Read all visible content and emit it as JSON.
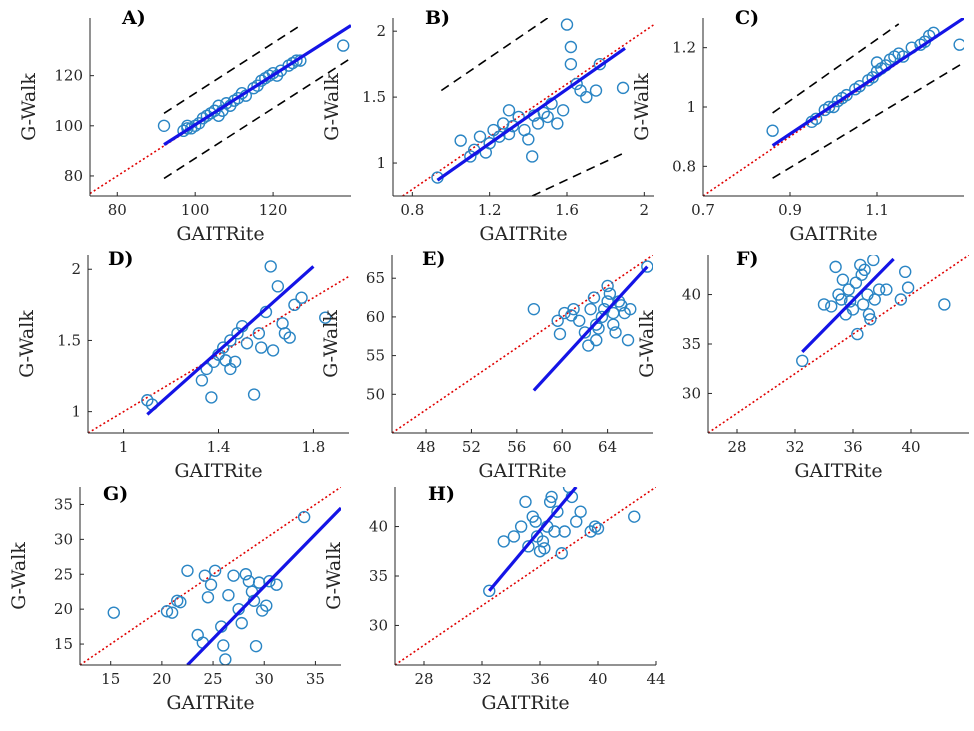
{
  "colors": {
    "marker": "#2a85c4",
    "fit": "#1414e6",
    "identity": "#e00000",
    "band": "#000000"
  },
  "chart_data": [
    {
      "label": "A)",
      "type": "scatter",
      "xlabel": "GAITRite",
      "ylabel": "G-Walk",
      "xlim": [
        73,
        140
      ],
      "ylim": [
        72,
        143
      ],
      "xticks": [
        80,
        100,
        120
      ],
      "xticklabels": [
        "80",
        "100",
        "120"
      ],
      "yticks": [
        80,
        100,
        120
      ],
      "yticklabels": [
        "80",
        "100",
        "120"
      ],
      "identity": true,
      "fit": {
        "x": [
          92,
          140
        ],
        "y": [
          92.5,
          140
        ]
      },
      "bands": [
        {
          "x": [
            92,
            127
          ],
          "y": [
            105,
            140
          ]
        },
        {
          "x": [
            92,
            140
          ],
          "y": [
            79,
            127
          ]
        }
      ],
      "points": [
        [
          92,
          100
        ],
        [
          97,
          98
        ],
        [
          98,
          99
        ],
        [
          98,
          100
        ],
        [
          99,
          99
        ],
        [
          100,
          100
        ],
        [
          101,
          101
        ],
        [
          102,
          103
        ],
        [
          103,
          104
        ],
        [
          104,
          105
        ],
        [
          105,
          106
        ],
        [
          106,
          104
        ],
        [
          106,
          108
        ],
        [
          107,
          106
        ],
        [
          108,
          109
        ],
        [
          109,
          108
        ],
        [
          110,
          110
        ],
        [
          111,
          111
        ],
        [
          112,
          113
        ],
        [
          113,
          112
        ],
        [
          115,
          115
        ],
        [
          116,
          116
        ],
        [
          117,
          118
        ],
        [
          118,
          119
        ],
        [
          119,
          120
        ],
        [
          120,
          121
        ],
        [
          121,
          120
        ],
        [
          122,
          122
        ],
        [
          124,
          124
        ],
        [
          125,
          125
        ],
        [
          126,
          126
        ],
        [
          127,
          126
        ],
        [
          138,
          132
        ]
      ]
    },
    {
      "label": "B)",
      "type": "scatter",
      "xlabel": "GAITRite",
      "ylabel": "G-Walk",
      "xlim": [
        0.7,
        2.05
      ],
      "ylim": [
        0.75,
        2.1
      ],
      "xticks": [
        0.8,
        1.2,
        1.6,
        2.0
      ],
      "xticklabels": [
        "0.8",
        "1.2",
        "1.6",
        "2"
      ],
      "yticks": [
        1.0,
        1.5,
        2.0
      ],
      "yticklabels": [
        "1",
        "1.5",
        "2"
      ],
      "identity": true,
      "fit": {
        "x": [
          0.93,
          1.9
        ],
        "y": [
          0.87,
          1.87
        ]
      },
      "bands": [
        {
          "x": [
            0.95,
            1.5
          ],
          "y": [
            1.55,
            2.1
          ]
        },
        {
          "x": [
            1.42,
            1.9
          ],
          "y": [
            0.75,
            1.08
          ]
        }
      ],
      "points": [
        [
          0.93,
          0.89
        ],
        [
          1.05,
          1.17
        ],
        [
          1.1,
          1.05
        ],
        [
          1.12,
          1.1
        ],
        [
          1.15,
          1.2
        ],
        [
          1.18,
          1.08
        ],
        [
          1.2,
          1.15
        ],
        [
          1.22,
          1.25
        ],
        [
          1.25,
          1.2
        ],
        [
          1.27,
          1.3
        ],
        [
          1.3,
          1.22
        ],
        [
          1.3,
          1.4
        ],
        [
          1.32,
          1.28
        ],
        [
          1.35,
          1.35
        ],
        [
          1.38,
          1.25
        ],
        [
          1.4,
          1.18
        ],
        [
          1.42,
          1.05
        ],
        [
          1.43,
          1.36
        ],
        [
          1.45,
          1.3
        ],
        [
          1.48,
          1.38
        ],
        [
          1.5,
          1.35
        ],
        [
          1.52,
          1.45
        ],
        [
          1.55,
          1.3
        ],
        [
          1.58,
          1.4
        ],
        [
          1.6,
          2.05
        ],
        [
          1.62,
          1.88
        ],
        [
          1.62,
          1.75
        ],
        [
          1.65,
          1.6
        ],
        [
          1.67,
          1.55
        ],
        [
          1.7,
          1.5
        ],
        [
          1.75,
          1.55
        ],
        [
          1.77,
          1.75
        ],
        [
          1.89,
          1.57
        ]
      ]
    },
    {
      "label": "C)",
      "type": "scatter",
      "xlabel": "GAITRite",
      "ylabel": "G-Walk",
      "xlim": [
        0.7,
        1.3
      ],
      "ylim": [
        0.7,
        1.3
      ],
      "xticks": [
        0.7,
        0.9,
        1.1
      ],
      "xticklabels": [
        "0.7",
        "0.9",
        "1.1"
      ],
      "yticks": [
        0.8,
        1.0,
        1.2
      ],
      "yticklabels": [
        "0.8",
        "1",
        "1.2"
      ],
      "identity": true,
      "fit": {
        "x": [
          0.86,
          1.3
        ],
        "y": [
          0.87,
          1.3
        ]
      },
      "bands": [
        {
          "x": [
            0.86,
            1.15
          ],
          "y": [
            0.98,
            1.28
          ]
        },
        {
          "x": [
            0.86,
            1.3
          ],
          "y": [
            0.76,
            1.15
          ]
        }
      ],
      "points": [
        [
          0.86,
          0.92
        ],
        [
          0.95,
          0.95
        ],
        [
          0.96,
          0.96
        ],
        [
          0.98,
          0.99
        ],
        [
          0.99,
          1.0
        ],
        [
          1.0,
          1.0
        ],
        [
          1.01,
          1.02
        ],
        [
          1.02,
          1.03
        ],
        [
          1.03,
          1.04
        ],
        [
          1.05,
          1.06
        ],
        [
          1.06,
          1.07
        ],
        [
          1.08,
          1.09
        ],
        [
          1.09,
          1.1
        ],
        [
          1.1,
          1.12
        ],
        [
          1.1,
          1.15
        ],
        [
          1.11,
          1.13
        ],
        [
          1.12,
          1.14
        ],
        [
          1.13,
          1.16
        ],
        [
          1.14,
          1.17
        ],
        [
          1.15,
          1.18
        ],
        [
          1.16,
          1.17
        ],
        [
          1.18,
          1.2
        ],
        [
          1.2,
          1.21
        ],
        [
          1.21,
          1.22
        ],
        [
          1.22,
          1.24
        ],
        [
          1.23,
          1.25
        ],
        [
          1.29,
          1.21
        ]
      ]
    },
    {
      "label": "D)",
      "type": "scatter",
      "xlabel": "GAITRite",
      "ylabel": "G-Walk",
      "xlim": [
        0.85,
        1.95
      ],
      "ylim": [
        0.85,
        2.1
      ],
      "xticks": [
        1.0,
        1.4,
        1.8
      ],
      "xticklabels": [
        "1",
        "1.4",
        "1.8"
      ],
      "yticks": [
        1.0,
        1.5,
        2.0
      ],
      "yticklabels": [
        "1",
        "1.5",
        "2"
      ],
      "identity": true,
      "fit": {
        "x": [
          1.1,
          1.8
        ],
        "y": [
          0.98,
          2.02
        ]
      },
      "bands": [],
      "points": [
        [
          1.1,
          1.08
        ],
        [
          1.12,
          1.05
        ],
        [
          1.33,
          1.22
        ],
        [
          1.35,
          1.3
        ],
        [
          1.37,
          1.1
        ],
        [
          1.38,
          1.35
        ],
        [
          1.4,
          1.4
        ],
        [
          1.42,
          1.45
        ],
        [
          1.43,
          1.36
        ],
        [
          1.45,
          1.3
        ],
        [
          1.45,
          1.5
        ],
        [
          1.47,
          1.35
        ],
        [
          1.48,
          1.55
        ],
        [
          1.5,
          1.6
        ],
        [
          1.52,
          1.48
        ],
        [
          1.55,
          1.12
        ],
        [
          1.57,
          1.55
        ],
        [
          1.58,
          1.45
        ],
        [
          1.6,
          1.7
        ],
        [
          1.62,
          2.02
        ],
        [
          1.63,
          1.43
        ],
        [
          1.65,
          1.88
        ],
        [
          1.67,
          1.62
        ],
        [
          1.68,
          1.55
        ],
        [
          1.7,
          1.52
        ],
        [
          1.72,
          1.75
        ],
        [
          1.75,
          1.8
        ],
        [
          1.85,
          1.66
        ]
      ]
    },
    {
      "label": "E)",
      "type": "scatter",
      "xlabel": "GAITRite",
      "ylabel": "G-Walk",
      "xlim": [
        45,
        68
      ],
      "ylim": [
        45,
        68
      ],
      "xticks": [
        48,
        52,
        56,
        60,
        64
      ],
      "xticklabels": [
        "48",
        "52",
        "56",
        "60",
        "64"
      ],
      "yticks": [
        50,
        55,
        60,
        65
      ],
      "yticklabels": [
        "50",
        "55",
        "60",
        "65"
      ],
      "identity": true,
      "fit": {
        "x": [
          57.5,
          67.5
        ],
        "y": [
          50.5,
          66.5
        ]
      },
      "bands": [],
      "points": [
        [
          57.5,
          61
        ],
        [
          59.6,
          59.5
        ],
        [
          59.8,
          57.8
        ],
        [
          60.2,
          60.5
        ],
        [
          60.8,
          60.2
        ],
        [
          61,
          61
        ],
        [
          61.5,
          59.5
        ],
        [
          62,
          58
        ],
        [
          62.3,
          56.3
        ],
        [
          62.5,
          61
        ],
        [
          62.8,
          62.5
        ],
        [
          63,
          59
        ],
        [
          63,
          57
        ],
        [
          63.2,
          58.5
        ],
        [
          63.5,
          60
        ],
        [
          63.7,
          61
        ],
        [
          64,
          62
        ],
        [
          64,
          64
        ],
        [
          64.2,
          63
        ],
        [
          64.5,
          60.5
        ],
        [
          64.5,
          59
        ],
        [
          64.7,
          58
        ],
        [
          65,
          62
        ],
        [
          65.2,
          61.5
        ],
        [
          65.5,
          60.5
        ],
        [
          65.8,
          57
        ],
        [
          66,
          61
        ],
        [
          67.5,
          66.5
        ]
      ]
    },
    {
      "label": "F)",
      "type": "scatter",
      "xlabel": "GAITRite",
      "ylabel": "G-Walk",
      "xlim": [
        26,
        44
      ],
      "ylim": [
        26,
        44
      ],
      "xticks": [
        28,
        32,
        36,
        40
      ],
      "xticklabels": [
        "28",
        "32",
        "36",
        "40"
      ],
      "yticks": [
        30,
        35,
        40
      ],
      "yticklabels": [
        "30",
        "35",
        "40"
      ],
      "identity": true,
      "fit": {
        "x": [
          32.5,
          38.8
        ],
        "y": [
          34.2,
          43.6
        ]
      },
      "bands": [],
      "points": [
        [
          32.5,
          33.3
        ],
        [
          34,
          39
        ],
        [
          34.5,
          38.8
        ],
        [
          34.8,
          42.8
        ],
        [
          35,
          40
        ],
        [
          35.2,
          39.5
        ],
        [
          35.3,
          41.5
        ],
        [
          35.5,
          38
        ],
        [
          35.7,
          40.5
        ],
        [
          35.8,
          39.3
        ],
        [
          36,
          38.5
        ],
        [
          36.2,
          41.2
        ],
        [
          36.3,
          36
        ],
        [
          36.5,
          43
        ],
        [
          36.6,
          42
        ],
        [
          36.7,
          39
        ],
        [
          36.8,
          42.5
        ],
        [
          37,
          40
        ],
        [
          37.1,
          38
        ],
        [
          37.2,
          37.5
        ],
        [
          37.4,
          43.5
        ],
        [
          37.5,
          39.5
        ],
        [
          37.8,
          40.5
        ],
        [
          38.3,
          40.5
        ],
        [
          39.3,
          39.5
        ],
        [
          39.6,
          42.3
        ],
        [
          39.8,
          40.7
        ],
        [
          42.3,
          39
        ]
      ]
    },
    {
      "label": "G)",
      "type": "scatter",
      "xlabel": "GAITRite",
      "ylabel": "G-Walk",
      "xlim": [
        12,
        37.5
      ],
      "ylim": [
        12,
        37.5
      ],
      "xticks": [
        15,
        20,
        25,
        30,
        35
      ],
      "xticklabels": [
        "15",
        "20",
        "25",
        "30",
        "35"
      ],
      "yticks": [
        15,
        20,
        25,
        30,
        35
      ],
      "yticklabels": [
        "15",
        "20",
        "25",
        "30",
        "35"
      ],
      "identity": true,
      "fit": {
        "x": [
          22.5,
          37.5
        ],
        "y": [
          12,
          34.5
        ]
      },
      "bands": [],
      "points": [
        [
          15.3,
          19.5
        ],
        [
          20.5,
          19.7
        ],
        [
          21,
          19.5
        ],
        [
          21.5,
          21.2
        ],
        [
          21.8,
          21
        ],
        [
          22.5,
          25.5
        ],
        [
          23.5,
          16.3
        ],
        [
          24,
          15.2
        ],
        [
          24.2,
          24.8
        ],
        [
          24.5,
          21.7
        ],
        [
          24.8,
          23.5
        ],
        [
          25.2,
          25.5
        ],
        [
          25.8,
          17.5
        ],
        [
          26,
          14.8
        ],
        [
          26.2,
          12.8
        ],
        [
          26.5,
          22
        ],
        [
          27,
          24.8
        ],
        [
          27.5,
          20
        ],
        [
          27.8,
          18
        ],
        [
          28.2,
          25
        ],
        [
          28.5,
          24
        ],
        [
          28.8,
          22.5
        ],
        [
          29,
          21.2
        ],
        [
          29.2,
          14.7
        ],
        [
          29.5,
          23.8
        ],
        [
          29.8,
          19.8
        ],
        [
          30.2,
          20.5
        ],
        [
          30.5,
          24
        ],
        [
          31.2,
          23.5
        ],
        [
          33.9,
          33.2
        ]
      ]
    },
    {
      "label": "H)",
      "type": "scatter",
      "xlabel": "GAITRite",
      "ylabel": "G-Walk",
      "xlim": [
        26,
        44
      ],
      "ylim": [
        26,
        44
      ],
      "xticks": [
        28,
        32,
        36,
        40,
        44
      ],
      "xticklabels": [
        "28",
        "32",
        "36",
        "40",
        "44"
      ],
      "yticks": [
        30,
        35,
        40
      ],
      "yticklabels": [
        "30",
        "35",
        "40"
      ],
      "identity": true,
      "fit": {
        "x": [
          32.5,
          38.5
        ],
        "y": [
          33.5,
          44
        ]
      },
      "bands": [],
      "points": [
        [
          32.5,
          33.5
        ],
        [
          33.5,
          38.5
        ],
        [
          34.2,
          39
        ],
        [
          34.7,
          40
        ],
        [
          35,
          42.5
        ],
        [
          35.2,
          38
        ],
        [
          35.5,
          41
        ],
        [
          35.7,
          40.5
        ],
        [
          35.8,
          39
        ],
        [
          36,
          37.5
        ],
        [
          36.2,
          38.5
        ],
        [
          36.3,
          37.8
        ],
        [
          36.5,
          40
        ],
        [
          36.7,
          42.5
        ],
        [
          36.8,
          43
        ],
        [
          37,
          39.5
        ],
        [
          37.2,
          41.5
        ],
        [
          37.5,
          37.3
        ],
        [
          37.7,
          39.5
        ],
        [
          38,
          44
        ],
        [
          38.2,
          43
        ],
        [
          38.5,
          40.5
        ],
        [
          38.8,
          41.5
        ],
        [
          39.5,
          39.5
        ],
        [
          39.8,
          40
        ],
        [
          40,
          39.8
        ],
        [
          42.5,
          41
        ]
      ]
    }
  ]
}
